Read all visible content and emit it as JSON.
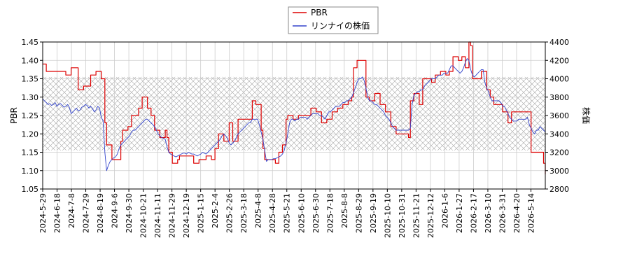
{
  "chart_data": {
    "type": "line",
    "legend": {
      "position": "top-center",
      "entries": [
        {
          "label": "PBR",
          "color": "#dd0000"
        },
        {
          "label": "リンナイの株価",
          "color": "#3344cc"
        }
      ]
    },
    "ylabel_left": "PBR",
    "ylabel_right": "株価",
    "ylim_left": [
      1.05,
      1.45
    ],
    "ylim_right": [
      2800,
      4400
    ],
    "yticks_left": [
      "1.05",
      "1.10",
      "1.15",
      "1.20",
      "1.25",
      "1.30",
      "1.35",
      "1.40",
      "1.45"
    ],
    "yticks_right": [
      "2800",
      "3000",
      "3200",
      "3400",
      "3600",
      "3800",
      "4000",
      "4200",
      "4400"
    ],
    "xticks": [
      "2024-5-29",
      "2024-6-18",
      "2024-7-8",
      "2024-7-29",
      "2024-8-19",
      "2024-9-6",
      "2024-9-30",
      "2024-10-21",
      "2024-11-11",
      "2024-11-29",
      "2024-12-19",
      "2025-1-15",
      "2025-2-4",
      "2025-2-26",
      "2025-3-18",
      "2025-4-8",
      "2025-4-28",
      "2025-5-21",
      "2025-6-10",
      "2025-6-30",
      "2025-7-18",
      "2025-8-8",
      "2025-8-29",
      "2025-9-19",
      "2025-10-10",
      "2025-10-31",
      "2025-11-21",
      "2025-12-12",
      "2026-1-6",
      "2026-1-27",
      "2026-2-17",
      "2026-3-10",
      "2026-3-31",
      "2026-4-20",
      "2026-5-14"
    ],
    "band_left": [
      1.155,
      1.355
    ],
    "grid": true,
    "series": [
      {
        "name": "PBR",
        "axis": "left",
        "color": "#dd0000",
        "values": [
          1.39,
          1.39,
          1.37,
          1.37,
          1.37,
          1.37,
          1.37,
          1.37,
          1.37,
          1.37,
          1.37,
          1.37,
          1.37,
          1.36,
          1.36,
          1.36,
          1.38,
          1.38,
          1.38,
          1.38,
          1.32,
          1.32,
          1.32,
          1.33,
          1.33,
          1.33,
          1.33,
          1.36,
          1.36,
          1.36,
          1.37,
          1.37,
          1.37,
          1.35,
          1.35,
          1.23,
          1.17,
          1.17,
          1.17,
          1.13,
          1.13,
          1.13,
          1.13,
          1.13,
          1.18,
          1.21,
          1.21,
          1.21,
          1.22,
          1.22,
          1.25,
          1.25,
          1.25,
          1.25,
          1.27,
          1.27,
          1.3,
          1.3,
          1.3,
          1.27,
          1.27,
          1.25,
          1.25,
          1.21,
          1.21,
          1.21,
          1.19,
          1.19,
          1.19,
          1.21,
          1.19,
          1.15,
          1.15,
          1.12,
          1.12,
          1.12,
          1.13,
          1.14,
          1.14,
          1.14,
          1.14,
          1.14,
          1.14,
          1.14,
          1.14,
          1.12,
          1.12,
          1.12,
          1.13,
          1.13,
          1.13,
          1.13,
          1.14,
          1.14,
          1.14,
          1.13,
          1.13,
          1.16,
          1.16,
          1.2,
          1.2,
          1.2,
          1.18,
          1.18,
          1.18,
          1.23,
          1.23,
          1.18,
          1.18,
          1.18,
          1.24,
          1.24,
          1.24,
          1.24,
          1.24,
          1.24,
          1.24,
          1.24,
          1.29,
          1.29,
          1.28,
          1.28,
          1.28,
          1.21,
          1.16,
          1.13,
          1.13,
          1.13,
          1.13,
          1.13,
          1.13,
          1.12,
          1.12,
          1.15,
          1.15,
          1.17,
          1.17,
          1.24,
          1.25,
          1.25,
          1.25,
          1.24,
          1.24,
          1.24,
          1.25,
          1.25,
          1.25,
          1.25,
          1.25,
          1.25,
          1.25,
          1.27,
          1.27,
          1.27,
          1.26,
          1.26,
          1.26,
          1.23,
          1.23,
          1.23,
          1.24,
          1.24,
          1.24,
          1.26,
          1.26,
          1.26,
          1.27,
          1.27,
          1.27,
          1.28,
          1.28,
          1.28,
          1.29,
          1.29,
          1.3,
          1.38,
          1.38,
          1.4,
          1.4,
          1.4,
          1.4,
          1.4,
          1.3,
          1.3,
          1.29,
          1.29,
          1.29,
          1.31,
          1.31,
          1.31,
          1.28,
          1.28,
          1.28,
          1.26,
          1.26,
          1.26,
          1.22,
          1.22,
          1.22,
          1.2,
          1.2,
          1.2,
          1.2,
          1.2,
          1.2,
          1.2,
          1.19,
          1.29,
          1.29,
          1.31,
          1.31,
          1.31,
          1.28,
          1.28,
          1.35,
          1.35,
          1.35,
          1.35,
          1.35,
          1.34,
          1.34,
          1.36,
          1.36,
          1.36,
          1.37,
          1.37,
          1.37,
          1.36,
          1.36,
          1.37,
          1.37,
          1.41,
          1.41,
          1.41,
          1.4,
          1.4,
          1.41,
          1.41,
          1.38,
          1.38,
          1.45,
          1.44,
          1.35,
          1.35,
          1.35,
          1.35,
          1.35,
          1.37,
          1.37,
          1.37,
          1.32,
          1.32,
          1.3,
          1.3,
          1.28,
          1.28,
          1.28,
          1.28,
          1.28,
          1.26,
          1.26,
          1.26,
          1.23,
          1.23,
          1.26,
          1.26,
          1.26,
          1.26,
          1.26,
          1.26,
          1.26,
          1.26,
          1.26,
          1.26,
          1.26,
          1.15,
          1.15,
          1.15,
          1.15,
          1.15,
          1.15,
          1.15,
          1.12,
          1.09
        ]
      },
      {
        "name": "リンナイの株価",
        "axis": "right",
        "color": "#3344cc",
        "values": [
          3780,
          3760,
          3740,
          3720,
          3730,
          3710,
          3720,
          3740,
          3700,
          3720,
          3730,
          3710,
          3690,
          3700,
          3720,
          3690,
          3620,
          3640,
          3660,
          3680,
          3650,
          3660,
          3690,
          3700,
          3720,
          3710,
          3680,
          3700,
          3680,
          3640,
          3660,
          3700,
          3680,
          3580,
          3540,
          3200,
          3000,
          3060,
          3100,
          3120,
          3140,
          3150,
          3180,
          3240,
          3280,
          3300,
          3320,
          3340,
          3360,
          3380,
          3420,
          3440,
          3440,
          3460,
          3480,
          3500,
          3520,
          3540,
          3560,
          3560,
          3540,
          3520,
          3500,
          3480,
          3440,
          3400,
          3380,
          3360,
          3350,
          3340,
          3260,
          3200,
          3180,
          3170,
          3160,
          3150,
          3160,
          3170,
          3180,
          3190,
          3190,
          3180,
          3200,
          3190,
          3180,
          3180,
          3170,
          3160,
          3170,
          3180,
          3200,
          3190,
          3180,
          3200,
          3220,
          3240,
          3260,
          3280,
          3300,
          3320,
          3340,
          3380,
          3400,
          3380,
          3350,
          3300,
          3280,
          3300,
          3320,
          3360,
          3400,
          3420,
          3440,
          3460,
          3480,
          3500,
          3520,
          3520,
          3560,
          3560,
          3560,
          3560,
          3500,
          3420,
          3340,
          3220,
          3100,
          3120,
          3120,
          3120,
          3130,
          3130,
          3140,
          3150,
          3160,
          3180,
          3220,
          3300,
          3400,
          3520,
          3560,
          3560,
          3540,
          3560,
          3560,
          3580,
          3580,
          3580,
          3580,
          3560,
          3580,
          3600,
          3620,
          3620,
          3620,
          3620,
          3600,
          3600,
          3580,
          3560,
          3600,
          3640,
          3640,
          3660,
          3680,
          3700,
          3700,
          3700,
          3720,
          3740,
          3740,
          3760,
          3760,
          3780,
          3800,
          3850,
          3900,
          3960,
          4000,
          4000,
          4020,
          3980,
          3900,
          3800,
          3760,
          3760,
          3740,
          3720,
          3720,
          3700,
          3680,
          3660,
          3640,
          3600,
          3580,
          3560,
          3520,
          3480,
          3460,
          3440,
          3440,
          3440,
          3440,
          3440,
          3440,
          3440,
          3440,
          3460,
          3720,
          3820,
          3840,
          3860,
          3860,
          3880,
          3880,
          3920,
          3940,
          3960,
          3980,
          4000,
          4000,
          4000,
          4020,
          4040,
          4040,
          4040,
          4060,
          4060,
          4060,
          4100,
          4140,
          4140,
          4120,
          4100,
          4080,
          4060,
          4080,
          4120,
          4180,
          4220,
          4200,
          4100,
          4040,
          4020,
          4040,
          4060,
          4080,
          4100,
          4100,
          3960,
          3900,
          3860,
          3800,
          3760,
          3760,
          3760,
          3760,
          3760,
          3740,
          3700,
          3700,
          3660,
          3620,
          3580,
          3560,
          3540,
          3540,
          3540,
          3560,
          3560,
          3560,
          3560,
          3560,
          3580,
          3500,
          3460,
          3420,
          3400,
          3440,
          3440,
          3480,
          3460,
          3440,
          3420
        ]
      }
    ]
  }
}
